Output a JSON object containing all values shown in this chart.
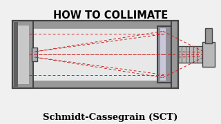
{
  "bg_color": "#f0f0f0",
  "title_text": "HOW TO COLLIMATE",
  "subtitle_text": "Schmidt-Cassegrain (SCT)",
  "title_fontsize": 10.5,
  "subtitle_fontsize": 9.5,
  "scope": {
    "outer_color": "#989898",
    "outer_edge": "#555555",
    "inner_light": "#e8e8e8",
    "inner_mid": "#c8c8c8",
    "wall_dark": "#707070",
    "cap_color": "#aaaaaa",
    "primary_color": "#909098",
    "secondary_color": "#b0b0b8",
    "focuser_color": "#b8b8b8",
    "line_color": "#cc2222",
    "dark_edge": "#444444"
  }
}
